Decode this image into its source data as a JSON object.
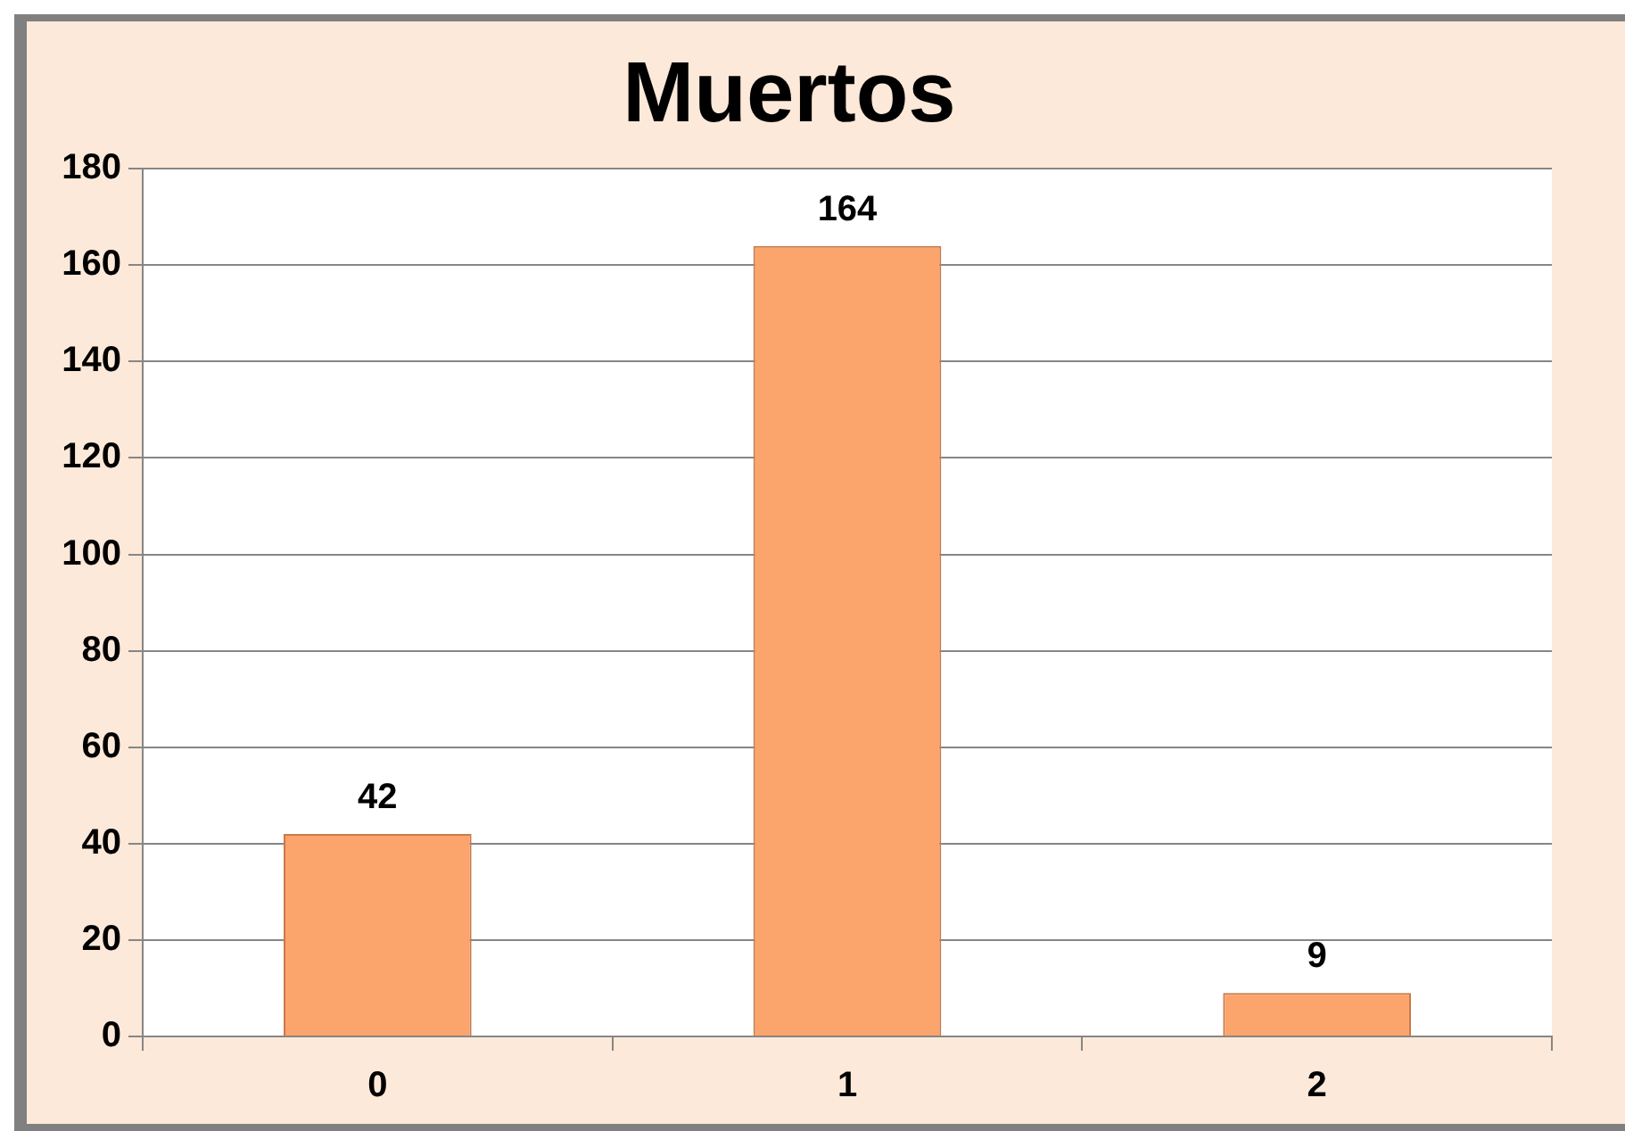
{
  "chart_data": {
    "type": "bar",
    "title": "Muertos",
    "categories": [
      "0",
      "1",
      "2"
    ],
    "values": [
      42,
      164,
      9
    ],
    "color": "#fba46c",
    "ylim": [
      0,
      180
    ],
    "yticks": [
      0,
      20,
      40,
      60,
      80,
      100,
      120,
      140,
      160,
      180
    ],
    "grid": "y",
    "data_labels": true
  }
}
